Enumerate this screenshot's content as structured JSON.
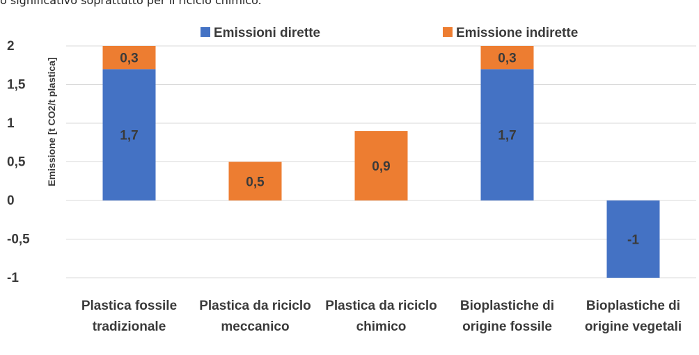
{
  "intro_text": "o significativo soprattutto per il riciclo chimico.",
  "colors": {
    "direct": "#4472C4",
    "indirect": "#ED7D31",
    "grid": "#d9d9d9"
  },
  "chart_data": {
    "type": "bar",
    "stacked": true,
    "title": "",
    "xlabel": "",
    "ylabel": "Emissione [t CO2/t plastica]",
    "ylim": [
      -1,
      2
    ],
    "yticks": [
      2,
      1.5,
      1,
      0.5,
      0,
      -0.5,
      -1
    ],
    "ytick_labels": [
      "2",
      "1,5",
      "1",
      "0,5",
      "0",
      "-0,5",
      "-1"
    ],
    "grid": true,
    "legend_position": "top",
    "categories": [
      [
        "Plastica fossile",
        "tradizionale"
      ],
      [
        "Plastica da riciclo",
        "meccanico"
      ],
      [
        "Plastica da riciclo",
        "chimico"
      ],
      [
        "Bioplastiche di",
        "origine fossile"
      ],
      [
        "Bioplastiche di",
        "origine vegetali"
      ]
    ],
    "series": [
      {
        "name": "Emissioni dirette",
        "color": "#4472C4",
        "values": [
          1.7,
          0,
          0,
          1.7,
          -1
        ],
        "labels": [
          "1,7",
          "",
          "",
          "1,7",
          "-1"
        ]
      },
      {
        "name": "Emissione indirette",
        "color": "#ED7D31",
        "values": [
          0.3,
          0.5,
          0.9,
          0.3,
          0
        ],
        "labels": [
          "0,3",
          "0,5",
          "0,9",
          "0,3",
          ""
        ]
      }
    ]
  }
}
